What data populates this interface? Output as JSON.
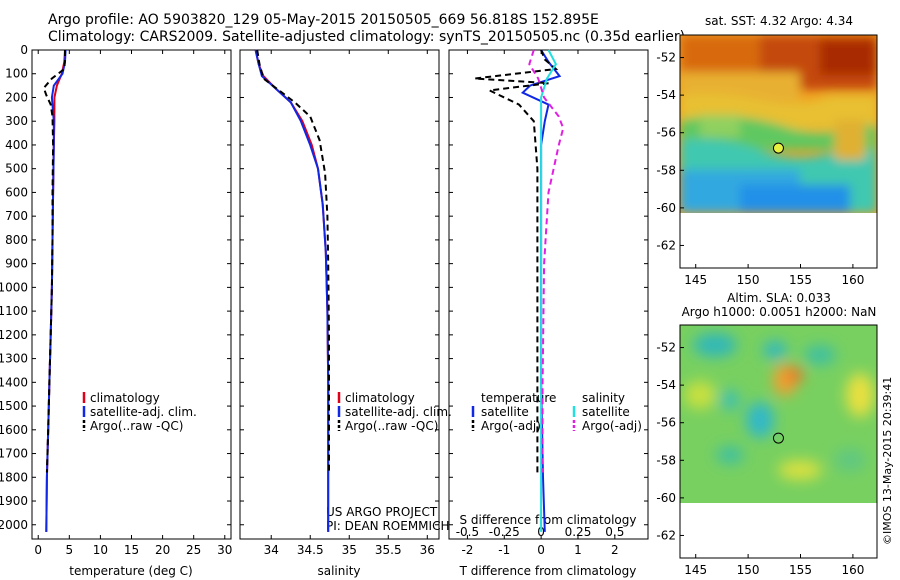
{
  "header": {
    "line1": "Argo profile: AO 5903820_129 05-May-2015 20150505_669 56.818S 152.895E",
    "line2": "Climatology: CARS2009. Satellite-adjusted climatology: synTS_20150505.nc (0.35d earlier)"
  },
  "credit": {
    "text": "©IMOS 13-May-2015 20:39:41",
    "project": "US ARGO PROJECT",
    "pi": "PI: DEAN ROEMMICH"
  },
  "colors": {
    "climatology": "#e0001a",
    "satellite": "#1028e6",
    "argo": "#000000",
    "sal_satellite": "#20e0e0",
    "sal_argo": "#e020e0"
  },
  "chart_data": [
    {
      "type": "line",
      "id": "temperature",
      "xlabel": "temperature (deg C)",
      "ylabel": "",
      "xlim": [
        -1,
        31
      ],
      "ylim": [
        2060,
        0
      ],
      "xticks": [
        0,
        5,
        10,
        15,
        20,
        25,
        30
      ],
      "yticks": [
        0,
        100,
        200,
        300,
        400,
        500,
        600,
        700,
        800,
        900,
        1000,
        1100,
        1200,
        1300,
        1400,
        1500,
        1600,
        1700,
        1800,
        1900,
        2000
      ],
      "legend": [
        "climatology",
        "satellite-adj. clim.",
        "Argo(..raw -QC)"
      ],
      "series": [
        {
          "name": "climatology",
          "color": "red",
          "style": "solid",
          "x": [
            4.3,
            4.2,
            3.8,
            3.0,
            2.6,
            2.6,
            2.5,
            2.4,
            2.3,
            2.2,
            2.0,
            1.8,
            1.6,
            1.4,
            1.3
          ],
          "y": [
            0,
            50,
            100,
            150,
            200,
            300,
            400,
            600,
            800,
            1000,
            1200,
            1400,
            1600,
            1800,
            2030
          ]
        },
        {
          "name": "satellite-adj. clim.",
          "color": "blue",
          "style": "solid",
          "x": [
            4.4,
            4.3,
            3.9,
            2.5,
            2.2,
            2.5,
            2.5,
            2.4,
            2.3,
            2.2,
            2.0,
            1.8,
            1.6,
            1.4,
            1.3
          ],
          "y": [
            0,
            50,
            100,
            150,
            200,
            300,
            400,
            600,
            800,
            1000,
            1200,
            1400,
            1600,
            1800,
            2030
          ]
        },
        {
          "name": "Argo(..raw -QC)",
          "color": "black",
          "style": "dashed",
          "x": [
            4.3,
            4.3,
            4.2,
            2.2,
            0.9,
            1.3,
            2.0,
            2.3,
            2.4,
            2.3,
            2.3,
            2.2,
            2.0,
            1.8,
            1.6,
            1.4
          ],
          "y": [
            0,
            40,
            80,
            120,
            160,
            190,
            230,
            280,
            400,
            600,
            800,
            1000,
            1200,
            1400,
            1600,
            1780
          ]
        }
      ]
    },
    {
      "type": "line",
      "id": "salinity",
      "xlabel": "salinity",
      "xlim": [
        33.6,
        36.15
      ],
      "ylim": [
        2060,
        0
      ],
      "xticks": [
        34,
        34.5,
        35,
        35.5,
        36
      ],
      "legend": [
        "climatology",
        "satellite-adj. clim.",
        "Argo(..raw -QC)"
      ],
      "series": [
        {
          "name": "climatology",
          "color": "red",
          "style": "solid",
          "x": [
            33.8,
            33.84,
            33.9,
            34.05,
            34.25,
            34.4,
            34.52,
            34.6,
            34.66,
            34.7,
            34.72,
            34.73,
            34.73,
            34.73
          ],
          "y": [
            0,
            60,
            110,
            160,
            220,
            300,
            400,
            500,
            650,
            850,
            1100,
            1400,
            1700,
            2030
          ]
        },
        {
          "name": "satellite-adj. clim.",
          "color": "blue",
          "style": "solid",
          "x": [
            33.8,
            33.84,
            33.88,
            34.05,
            34.25,
            34.38,
            34.5,
            34.6,
            34.66,
            34.7,
            34.72,
            34.73,
            34.73,
            34.73
          ],
          "y": [
            0,
            60,
            110,
            160,
            220,
            300,
            400,
            500,
            650,
            850,
            1100,
            1400,
            1700,
            2030
          ]
        },
        {
          "name": "Argo(..raw -QC)",
          "color": "black",
          "style": "dashed",
          "x": [
            33.82,
            33.85,
            33.9,
            34.1,
            34.3,
            34.5,
            34.62,
            34.69,
            34.72,
            34.73,
            34.74,
            34.74
          ],
          "y": [
            0,
            60,
            120,
            170,
            220,
            280,
            380,
            520,
            700,
            900,
            1200,
            1780
          ]
        }
      ]
    },
    {
      "type": "line",
      "id": "difference",
      "xlabel": "T difference from climatology",
      "xlabel2": "S difference from climatology",
      "xlim": [
        -2.5,
        2.9
      ],
      "ylim": [
        2060,
        0
      ],
      "xticks": [
        -2,
        -1,
        0,
        1,
        2
      ],
      "xticks2": [
        -0.5,
        -0.25,
        0,
        0.25,
        0.5
      ],
      "legend_headers": [
        "temperature",
        "salinity"
      ],
      "legend": [
        "satellite",
        "Argo(-adj)",
        "satellite",
        "Argo(-adj)"
      ],
      "series": [
        {
          "name": "temperature satellite",
          "color": "blue",
          "style": "solid",
          "x": [
            0.0,
            0.2,
            0.5,
            -0.3,
            -0.5,
            0.2,
            0.1,
            0.0,
            0.0,
            0.0,
            0.0,
            0.05,
            0.1
          ],
          "y": [
            0,
            50,
            110,
            150,
            180,
            230,
            300,
            400,
            700,
            1000,
            1400,
            1800,
            2030
          ]
        },
        {
          "name": "temperature Argo(-adj)",
          "color": "black",
          "style": "dashed",
          "x": [
            0.0,
            0.1,
            0.4,
            -1.8,
            0.2,
            -1.4,
            -0.6,
            -0.2,
            -0.1,
            -0.1,
            -0.1,
            -0.1
          ],
          "y": [
            0,
            40,
            80,
            120,
            140,
            170,
            230,
            300,
            500,
            900,
            1400,
            1780
          ]
        },
        {
          "name": "salinity satellite",
          "color": "cyan",
          "style": "solid",
          "x": [
            0.05,
            0.1,
            0.04,
            0.0,
            0.0,
            0.0,
            0.0,
            0.0,
            0.0
          ],
          "y": [
            0,
            60,
            120,
            200,
            300,
            500,
            1000,
            1500,
            2030
          ]
        },
        {
          "name": "salinity Argo(-adj)",
          "color": "magenta",
          "style": "dashed",
          "x": [
            -0.05,
            -0.08,
            -0.02,
            0.02,
            0.12,
            0.15,
            0.12,
            0.05,
            0.02,
            0.01,
            0.01
          ],
          "y": [
            0,
            60,
            120,
            200,
            280,
            330,
            400,
            600,
            900,
            1400,
            1780
          ]
        }
      ]
    },
    {
      "type": "heatmap",
      "id": "sst_map",
      "title": "sat. SST: 4.32  Argo: 4.34",
      "xlim": [
        143.5,
        162.3
      ],
      "ylim": [
        -63.2,
        -50.8
      ],
      "xticks": [
        145,
        150,
        155,
        160
      ],
      "yticks": [
        -52,
        -54,
        -56,
        -58,
        -60,
        -62
      ],
      "data_extent_lat": [
        -60,
        -51
      ],
      "marker": {
        "lon": 152.895,
        "lat": -56.818
      }
    },
    {
      "type": "heatmap",
      "id": "sla_map",
      "title": "Altim. SLA: 0.033",
      "subtitle": "Argo h1000: 0.0051  h2000: NaN",
      "xlim": [
        143.5,
        162.3
      ],
      "ylim": [
        -63.2,
        -50.8
      ],
      "xticks": [
        145,
        150,
        155,
        160
      ],
      "yticks": [
        -52,
        -54,
        -56,
        -58,
        -60,
        -62
      ],
      "data_extent_lat": [
        -60,
        -51
      ],
      "marker": {
        "lon": 152.895,
        "lat": -56.818
      }
    }
  ]
}
